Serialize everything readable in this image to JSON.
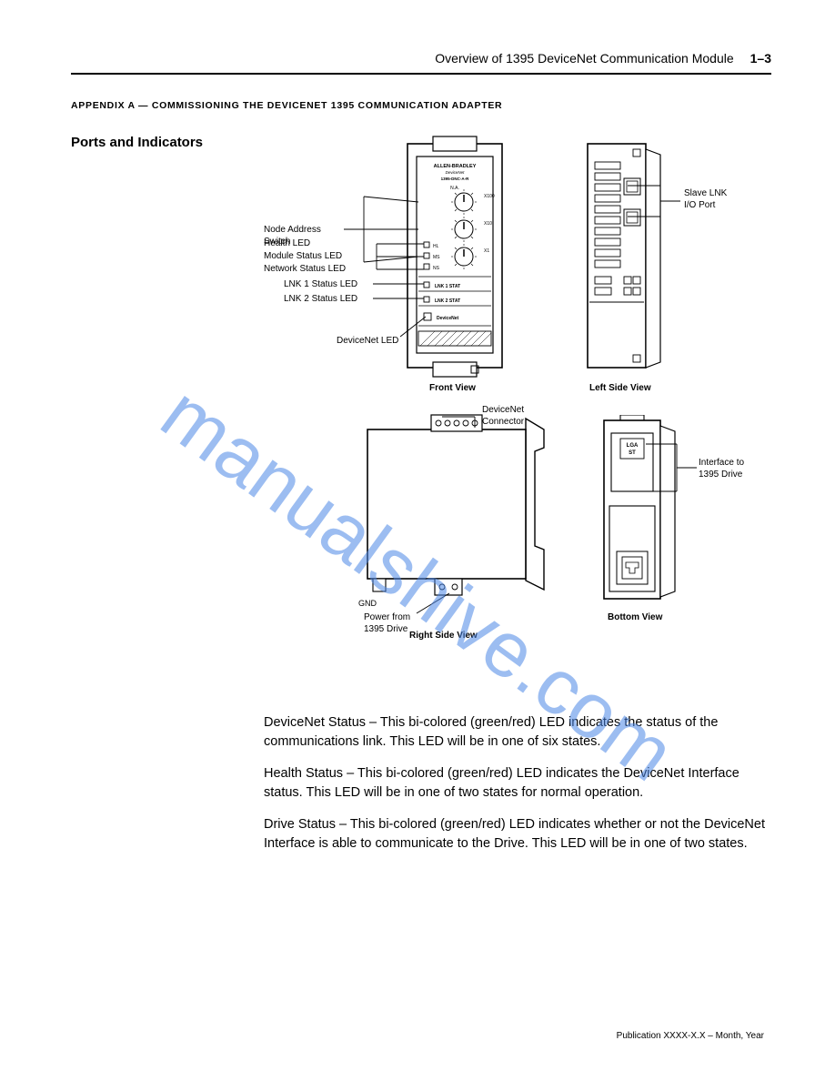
{
  "watermark": "manualshive.com",
  "header": {
    "chapter": "Overview of 1395 DeviceNet Communication Module",
    "page": "1–3"
  },
  "appendix_title": "APPENDIX A — COMMISSIONING THE DEVICENET 1395 COMMUNICATION ADAPTER",
  "side_heading": "Ports and Indicators",
  "row1": {
    "front_caption": "Front View",
    "left_caption": "Left Side View",
    "ann": {
      "health": "Health LED",
      "ms": "Module Status LED",
      "ns": "Network Status LED",
      "node": "Node Address\nSwitch",
      "lnk1": "LNK 1 Status LED",
      "lnk2": "LNK 2 Status LED",
      "slave_lnk": "Slave LNK\nI/O Port"
    },
    "module_label": {
      "brand": "ALLEN-BRADLEY",
      "sub": "DeviceNet",
      "model": "1395-DNC-A-R",
      "na": "N.A.",
      "x100": "X100",
      "x10": "X10",
      "x1": "X1",
      "hl": "HL",
      "ms_s": "MS",
      "ns_s": "NS",
      "l1": "LNK 1 STAT",
      "l2": "LNK 2 STAT",
      "dn": "DeviceNet"
    }
  },
  "row2": {
    "right_caption": "Right Side View",
    "bottom_caption": "Bottom View",
    "gnd": "GND",
    "ann": {
      "drive": "Interface to\n1395 Drive",
      "pwr": "Power from\n1395 Drive",
      "dn_conn": "DeviceNet\nConnector"
    },
    "stamp": "LGA\nST"
  },
  "body": {
    "p1": "DeviceNet Status – This bi-colored (green/red) LED indicates the status of the communications link. This LED will be in one of six states.",
    "p2": "Health Status – This bi-colored (green/red) LED indicates the DeviceNet Interface status. This LED will be in one of two states for normal operation.",
    "p3": "Drive Status – This bi-colored (green/red) LED indicates whether or not the DeviceNet Interface is able to communicate to the Drive. This LED will be in one of two states."
  },
  "pubno": "Publication XXXX-X.X – Month, Year",
  "colors": {
    "line": "#000000",
    "wm": "#4d88e6",
    "bg": "#ffffff"
  }
}
